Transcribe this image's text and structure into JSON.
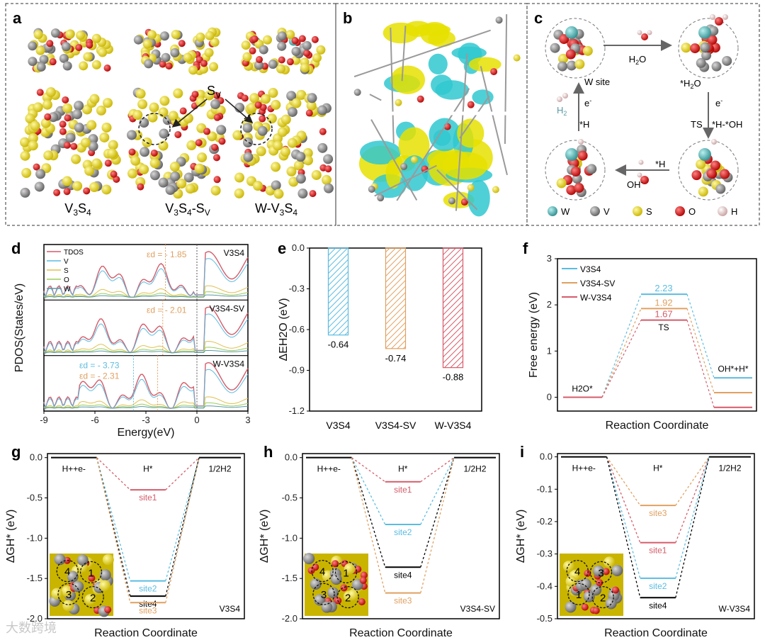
{
  "panels": {
    "a": {
      "letter": "a",
      "labels": [
        "V3S4",
        "V3S4-SV",
        "W-V3S4"
      ],
      "sv_label": "SV"
    },
    "b": {
      "letter": "b"
    },
    "c": {
      "letter": "c",
      "step_h2o": "H2O",
      "step_h2o_ads": "*H2O",
      "step_e1": "e-",
      "step_ts": "TS",
      "step_hoh": "*H-*OH",
      "step_h": "*H",
      "step_oh": "OH-",
      "step_h_ads": "*H",
      "step_e2": "e-",
      "step_h2": "H2",
      "step_wsite": "W site",
      "legend": [
        {
          "name": "W",
          "color": "#4aa5a5"
        },
        {
          "name": "V",
          "color": "#8a8a8a"
        },
        {
          "name": "S",
          "color": "#e6d21a"
        },
        {
          "name": "O",
          "color": "#d01818"
        },
        {
          "name": "H",
          "color": "#f0d0d0"
        }
      ]
    },
    "d": {
      "letter": "d"
    },
    "e": {
      "letter": "e"
    },
    "f": {
      "letter": "f"
    },
    "g": {
      "letter": "g"
    },
    "h": {
      "letter": "h"
    },
    "i": {
      "letter": "i"
    }
  },
  "colors": {
    "blue": "#5bbce0",
    "orange": "#e0a060",
    "red": "#d45c6a",
    "black": "#000000"
  },
  "chart_data": [
    {
      "id": "d",
      "type": "line",
      "ylabel": "PDOS(States/eV)",
      "xlabel": "Energy(eV)",
      "xlim": [
        -9,
        3
      ],
      "xticks": [
        "-9",
        "-6",
        "-3",
        "0",
        "3"
      ],
      "legend": [
        "TDOS",
        "V",
        "S",
        "O",
        "W"
      ],
      "subpanels": [
        {
          "name": "V3S4",
          "ed": [
            {
              "text": "εd = - 1.85",
              "value": -1.85,
              "color": "orange"
            }
          ]
        },
        {
          "name": "V3S4-SV",
          "ed": [
            {
              "text": "εd = - 2.01",
              "value": -2.01,
              "color": "orange"
            }
          ]
        },
        {
          "name": "W-V3S4",
          "ed": [
            {
              "text": "εd = - 3.73",
              "value": -3.73,
              "color": "blue"
            },
            {
              "text": "εd = - 2.31",
              "value": -2.31,
              "color": "orange"
            }
          ]
        }
      ]
    },
    {
      "id": "e",
      "type": "bar",
      "ylabel": "ΔEH2O (eV)",
      "ylim": [
        -1.2,
        0
      ],
      "yticks": [
        "0.0",
        "-0.3",
        "-0.6",
        "-0.9",
        "-1.2"
      ],
      "categories": [
        "V3S4",
        "V3S4-SV",
        "W-V3S4"
      ],
      "values": [
        -0.64,
        -0.74,
        -0.88
      ],
      "value_labels": [
        "-0.64",
        "-0.74",
        "-0.88"
      ]
    },
    {
      "id": "f",
      "type": "line",
      "ylabel": "Free energy (eV)",
      "xlabel": "Reaction Coordinate",
      "ylim": [
        -0.3,
        3.0
      ],
      "yticks": [
        "0",
        "1",
        "2",
        "3"
      ],
      "series": [
        {
          "name": "V3S4",
          "color": "blue",
          "values": [
            0,
            2.23,
            0.42
          ]
        },
        {
          "name": "V3S4-SV",
          "color": "orange",
          "values": [
            0,
            1.92,
            0.1
          ]
        },
        {
          "name": "W-V3S4",
          "color": "red",
          "values": [
            0,
            1.67,
            -0.22
          ]
        }
      ],
      "ts_labels": [
        "2.23",
        "1.92",
        "1.67"
      ],
      "stage_labels": [
        "H2O*",
        "TS",
        "OH*+H*"
      ]
    },
    {
      "id": "g",
      "type": "line",
      "title": "V3S4",
      "ylabel": "ΔGH* (eV)",
      "xlabel": "Reaction Coordinate",
      "ylim": [
        -2.0,
        0.05
      ],
      "yticks": [
        "0.0",
        "-0.5",
        "-1.0",
        "-1.5",
        "-2.0"
      ],
      "stage_labels": [
        "H++e-",
        "H*",
        "1/2H2"
      ],
      "sites": [
        {
          "name": "site1",
          "value": -0.4,
          "color": "red"
        },
        {
          "name": "site2",
          "value": -1.53,
          "color": "blue"
        },
        {
          "name": "site4",
          "value": -1.72,
          "color": "black"
        },
        {
          "name": "site3",
          "value": -1.8,
          "color": "orange"
        }
      ],
      "inset_sites": [
        "4",
        "1",
        "3",
        "2"
      ]
    },
    {
      "id": "h",
      "type": "line",
      "title": "V3S4-SV",
      "ylabel": "ΔGH* (eV)",
      "xlabel": "Reaction Coordinate",
      "ylim": [
        -2.0,
        0.05
      ],
      "yticks": [
        "0.0",
        "-0.5",
        "-1.0",
        "-1.5",
        "-2.0"
      ],
      "stage_labels": [
        "H++e-",
        "H*",
        "1/2H2"
      ],
      "sites": [
        {
          "name": "site1",
          "value": -0.3,
          "color": "red"
        },
        {
          "name": "site2",
          "value": -0.83,
          "color": "blue"
        },
        {
          "name": "site4",
          "value": -1.36,
          "color": "black"
        },
        {
          "name": "site3",
          "value": -1.68,
          "color": "orange"
        }
      ],
      "inset_sites": [
        "4",
        "1",
        "3",
        "2"
      ]
    },
    {
      "id": "i",
      "type": "line",
      "title": "W-V3S4",
      "ylabel": "ΔGH* (eV)",
      "xlabel": "Reaction Coordinate",
      "ylim": [
        -0.5,
        0.01
      ],
      "yticks": [
        "0.0",
        "-0.1",
        "-0.2",
        "-0.3",
        "-0.4",
        "-0.5"
      ],
      "stage_labels": [
        "H++e-",
        "H*",
        "1/2H2"
      ],
      "sites": [
        {
          "name": "site3",
          "value": -0.15,
          "color": "orange"
        },
        {
          "name": "site1",
          "value": -0.265,
          "color": "red"
        },
        {
          "name": "site2",
          "value": -0.375,
          "color": "blue"
        },
        {
          "name": "site4",
          "value": -0.435,
          "color": "black"
        }
      ],
      "inset_sites": [
        "4",
        "3",
        "1",
        "2"
      ]
    }
  ],
  "watermark": "大数跨境"
}
